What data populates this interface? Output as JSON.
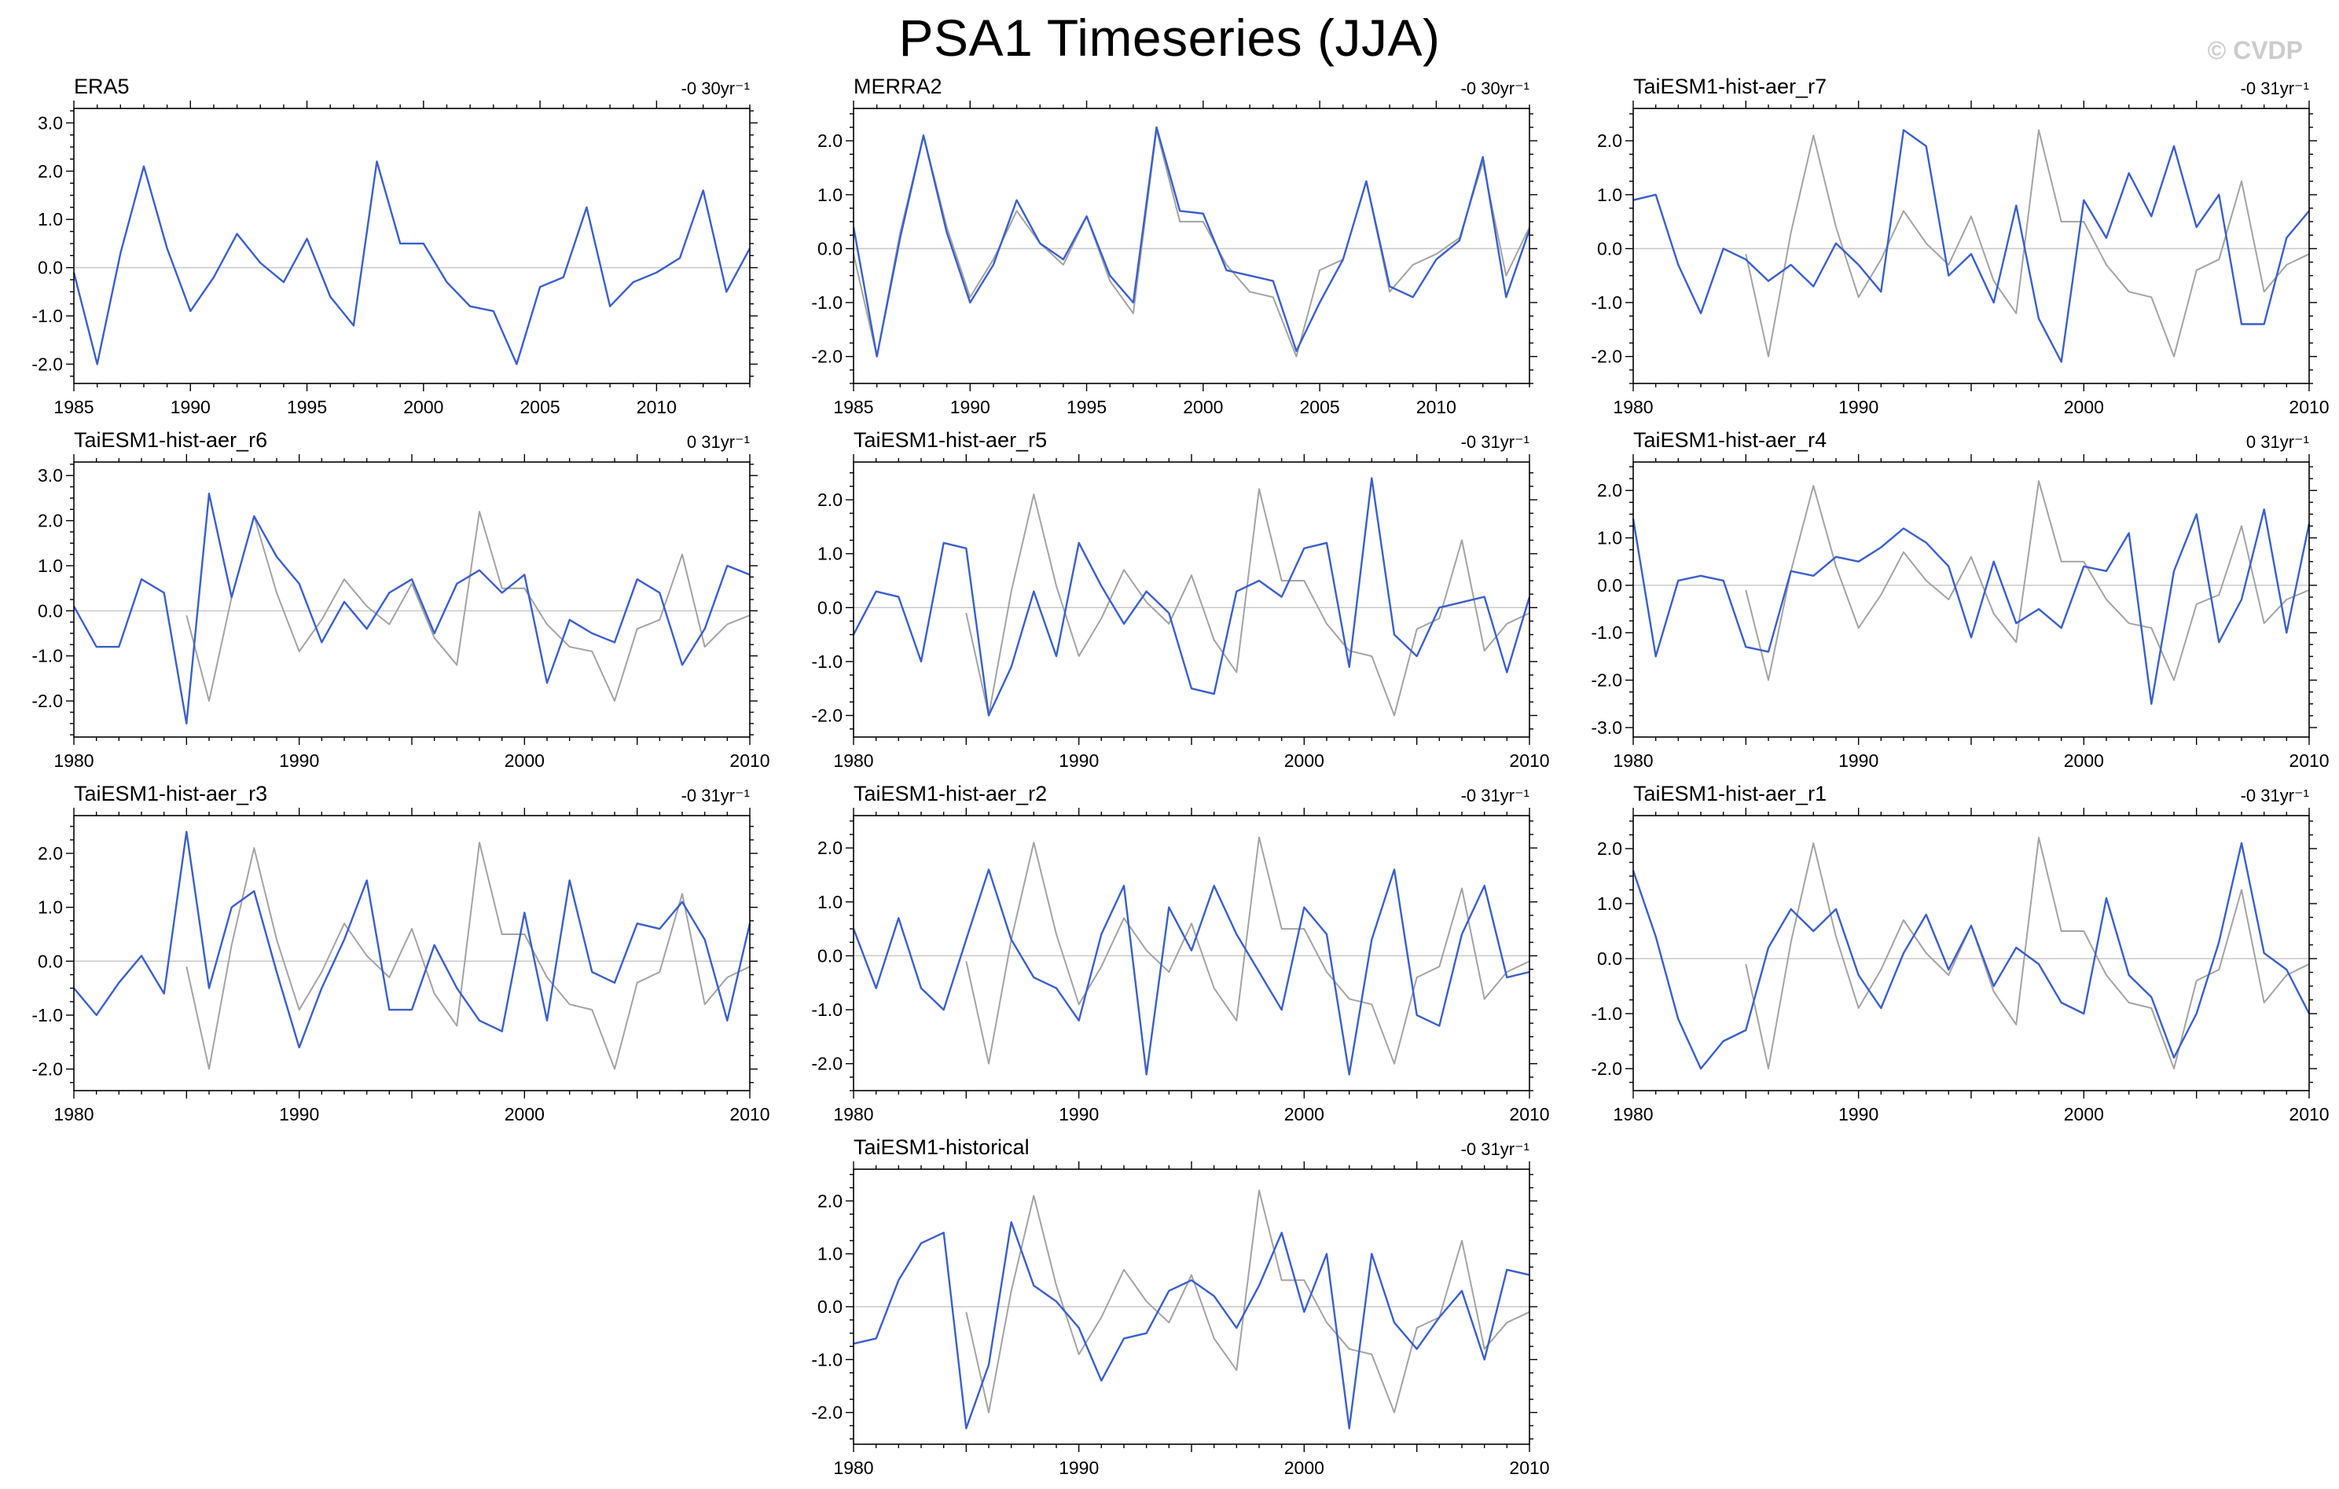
{
  "title": "PSA1 Timeseries (JJA)",
  "watermark": "© CVDP",
  "colors": {
    "primary_line": "#3a5fcd",
    "reference_line": "#a3a3a3",
    "zero_line": "#c9c9c9",
    "axis": "#000000",
    "watermark": "#cccccc"
  },
  "chart_data": {
    "type": "line",
    "title": "PSA1 Timeseries (JJA)",
    "xlabel": "",
    "ylabel": "",
    "legend": "none",
    "axes_style": {
      "grid": false,
      "zero_line": true,
      "x_major_step": 5,
      "x_minor_step": 1,
      "y_major_step": 1.0,
      "y_minor_step": 0.25,
      "ticks": "outward-all-sides"
    },
    "panels": [
      {
        "name": "ERA5",
        "trend_label": "-0 30yr⁻¹",
        "x_range": [
          1985,
          2014
        ],
        "xticks": [
          1985,
          1990,
          1995,
          2000,
          2005,
          2010
        ],
        "ylim": [
          -2.4,
          3.3
        ],
        "yticks": [
          -2.0,
          -1.0,
          0.0,
          1.0,
          2.0,
          3.0
        ],
        "series": [
          {
            "name": "ERA5",
            "color_role": "primary_line",
            "x_start": 1985,
            "values": [
              -0.1,
              -2.0,
              0.3,
              2.1,
              0.4,
              -0.9,
              -0.2,
              0.7,
              0.1,
              -0.3,
              0.6,
              -0.6,
              -1.2,
              2.2,
              0.5,
              0.5,
              -0.3,
              -0.8,
              -0.9,
              -2.0,
              -0.4,
              -0.2,
              1.25,
              -0.8,
              -0.3,
              -0.1,
              0.2,
              1.6,
              -0.5,
              0.4
            ]
          }
        ]
      },
      {
        "name": "MERRA2",
        "trend_label": "-0 30yr⁻¹",
        "x_range": [
          1985,
          2014
        ],
        "xticks": [
          1985,
          1990,
          1995,
          2000,
          2005,
          2010
        ],
        "ylim": [
          -2.5,
          2.6
        ],
        "yticks": [
          -2.0,
          -1.0,
          0.0,
          1.0,
          2.0
        ],
        "series": [
          {
            "name": "ERA5 (reference)",
            "color_role": "reference_line",
            "x_start": 1985,
            "values": [
              -0.1,
              -2.0,
              0.3,
              2.1,
              0.4,
              -0.9,
              -0.2,
              0.7,
              0.1,
              -0.3,
              0.6,
              -0.6,
              -1.2,
              2.2,
              0.5,
              0.5,
              -0.3,
              -0.8,
              -0.9,
              -2.0,
              -0.4,
              -0.2,
              1.25,
              -0.8,
              -0.3,
              -0.1,
              0.2,
              1.6,
              -0.5,
              0.4
            ]
          },
          {
            "name": "MERRA2",
            "color_role": "primary_line",
            "x_start": 1985,
            "values": [
              0.4,
              -2.0,
              0.2,
              2.1,
              0.3,
              -1.0,
              -0.3,
              0.9,
              0.1,
              -0.2,
              0.6,
              -0.5,
              -1.0,
              2.25,
              0.7,
              0.65,
              -0.4,
              -0.5,
              -0.6,
              -1.9,
              -1.0,
              -0.2,
              1.25,
              -0.7,
              -0.9,
              -0.2,
              0.15,
              1.7,
              -0.9,
              0.35
            ]
          }
        ]
      },
      {
        "name": "TaiESM1-hist-aer_r7",
        "trend_label": "-0 31yr⁻¹",
        "x_range": [
          1980,
          2010
        ],
        "xticks": [
          1980,
          1990,
          2000,
          2010
        ],
        "ylim": [
          -2.5,
          2.6
        ],
        "yticks": [
          -2.0,
          -1.0,
          0.0,
          1.0,
          2.0
        ],
        "series": [
          {
            "name": "ERA5 (reference)",
            "color_role": "reference_line",
            "x_start": 1985,
            "values": [
              -0.1,
              -2.0,
              0.3,
              2.1,
              0.4,
              -0.9,
              -0.2,
              0.7,
              0.1,
              -0.3,
              0.6,
              -0.6,
              -1.2,
              2.2,
              0.5,
              0.5,
              -0.3,
              -0.8,
              -0.9,
              -2.0,
              -0.4,
              -0.2,
              1.25,
              -0.8,
              -0.3,
              -0.1
            ]
          },
          {
            "name": "TaiESM1-hist-aer_r7",
            "color_role": "primary_line",
            "x_start": 1980,
            "values": [
              0.9,
              1.0,
              -0.3,
              -1.2,
              0.0,
              -0.2,
              -0.6,
              -0.3,
              -0.7,
              0.1,
              -0.3,
              -0.8,
              2.2,
              1.9,
              -0.5,
              -0.1,
              -1.0,
              0.8,
              -1.3,
              -2.1,
              0.9,
              0.2,
              1.4,
              0.6,
              1.9,
              0.4,
              1.0,
              -1.4,
              -1.4,
              0.2,
              0.7
            ]
          }
        ]
      },
      {
        "name": "TaiESM1-hist-aer_r6",
        "trend_label": "0 31yr⁻¹",
        "x_range": [
          1980,
          2010
        ],
        "xticks": [
          1980,
          1990,
          2000,
          2010
        ],
        "ylim": [
          -2.8,
          3.3
        ],
        "yticks": [
          -2.0,
          -1.0,
          0.0,
          1.0,
          2.0,
          3.0
        ],
        "series": [
          {
            "name": "ERA5 (reference)",
            "color_role": "reference_line",
            "x_start": 1985,
            "values": [
              -0.1,
              -2.0,
              0.3,
              2.1,
              0.4,
              -0.9,
              -0.2,
              0.7,
              0.1,
              -0.3,
              0.6,
              -0.6,
              -1.2,
              2.2,
              0.5,
              0.5,
              -0.3,
              -0.8,
              -0.9,
              -2.0,
              -0.4,
              -0.2,
              1.25,
              -0.8,
              -0.3,
              -0.1
            ]
          },
          {
            "name": "TaiESM1-hist-aer_r6",
            "color_role": "primary_line",
            "x_start": 1980,
            "values": [
              0.1,
              -0.8,
              -0.8,
              0.7,
              0.4,
              -2.5,
              2.6,
              0.3,
              2.1,
              1.2,
              0.6,
              -0.7,
              0.2,
              -0.4,
              0.4,
              0.7,
              -0.5,
              0.6,
              0.9,
              0.4,
              0.8,
              -1.6,
              -0.2,
              -0.5,
              -0.7,
              0.7,
              0.4,
              -1.2,
              -0.4,
              1.0,
              0.8
            ]
          }
        ]
      },
      {
        "name": "TaiESM1-hist-aer_r5",
        "trend_label": "-0 31yr⁻¹",
        "x_range": [
          1980,
          2010
        ],
        "xticks": [
          1980,
          1990,
          2000,
          2010
        ],
        "ylim": [
          -2.4,
          2.7
        ],
        "yticks": [
          -2.0,
          -1.0,
          0.0,
          1.0,
          2.0
        ],
        "series": [
          {
            "name": "ERA5 (reference)",
            "color_role": "reference_line",
            "x_start": 1985,
            "values": [
              -0.1,
              -2.0,
              0.3,
              2.1,
              0.4,
              -0.9,
              -0.2,
              0.7,
              0.1,
              -0.3,
              0.6,
              -0.6,
              -1.2,
              2.2,
              0.5,
              0.5,
              -0.3,
              -0.8,
              -0.9,
              -2.0,
              -0.4,
              -0.2,
              1.25,
              -0.8,
              -0.3,
              -0.1
            ]
          },
          {
            "name": "TaiESM1-hist-aer_r5",
            "color_role": "primary_line",
            "x_start": 1980,
            "values": [
              -0.5,
              0.3,
              0.2,
              -1.0,
              1.2,
              1.1,
              -2.0,
              -1.1,
              0.3,
              -0.9,
              1.2,
              0.4,
              -0.3,
              0.3,
              -0.1,
              -1.5,
              -1.6,
              0.3,
              0.5,
              0.2,
              1.1,
              1.2,
              -1.1,
              2.4,
              -0.5,
              -0.9,
              0.0,
              0.1,
              0.2,
              -1.2,
              0.2
            ]
          }
        ]
      },
      {
        "name": "TaiESM1-hist-aer_r4",
        "trend_label": "0 31yr⁻¹",
        "x_range": [
          1980,
          2010
        ],
        "xticks": [
          1980,
          1990,
          2000,
          2010
        ],
        "ylim": [
          -3.2,
          2.6
        ],
        "yticks": [
          -3.0,
          -2.0,
          -1.0,
          0.0,
          1.0,
          2.0
        ],
        "series": [
          {
            "name": "ERA5 (reference)",
            "color_role": "reference_line",
            "x_start": 1985,
            "values": [
              -0.1,
              -2.0,
              0.3,
              2.1,
              0.4,
              -0.9,
              -0.2,
              0.7,
              0.1,
              -0.3,
              0.6,
              -0.6,
              -1.2,
              2.2,
              0.5,
              0.5,
              -0.3,
              -0.8,
              -0.9,
              -2.0,
              -0.4,
              -0.2,
              1.25,
              -0.8,
              -0.3,
              -0.1
            ]
          },
          {
            "name": "TaiESM1-hist-aer_r4",
            "color_role": "primary_line",
            "x_start": 1980,
            "values": [
              1.4,
              -1.5,
              0.1,
              0.2,
              0.1,
              -1.3,
              -1.4,
              0.3,
              0.2,
              0.6,
              0.5,
              0.8,
              1.2,
              0.9,
              0.4,
              -1.1,
              0.5,
              -0.8,
              -0.5,
              -0.9,
              0.4,
              0.3,
              1.1,
              -2.5,
              0.3,
              1.5,
              -1.2,
              -0.3,
              1.6,
              -1.0,
              1.3
            ]
          }
        ]
      },
      {
        "name": "TaiESM1-hist-aer_r3",
        "trend_label": "-0 31yr⁻¹",
        "x_range": [
          1980,
          2010
        ],
        "xticks": [
          1980,
          1990,
          2000,
          2010
        ],
        "ylim": [
          -2.4,
          2.7
        ],
        "yticks": [
          -2.0,
          -1.0,
          0.0,
          1.0,
          2.0
        ],
        "series": [
          {
            "name": "ERA5 (reference)",
            "color_role": "reference_line",
            "x_start": 1985,
            "values": [
              -0.1,
              -2.0,
              0.3,
              2.1,
              0.4,
              -0.9,
              -0.2,
              0.7,
              0.1,
              -0.3,
              0.6,
              -0.6,
              -1.2,
              2.2,
              0.5,
              0.5,
              -0.3,
              -0.8,
              -0.9,
              -2.0,
              -0.4,
              -0.2,
              1.25,
              -0.8,
              -0.3,
              -0.1
            ]
          },
          {
            "name": "TaiESM1-hist-aer_r3",
            "color_role": "primary_line",
            "x_start": 1980,
            "values": [
              -0.5,
              -1.0,
              -0.4,
              0.1,
              -0.6,
              2.4,
              -0.5,
              1.0,
              1.3,
              -0.2,
              -1.6,
              -0.5,
              0.4,
              1.5,
              -0.9,
              -0.9,
              0.3,
              -0.5,
              -1.1,
              -1.3,
              0.9,
              -1.1,
              1.5,
              -0.2,
              -0.4,
              0.7,
              0.6,
              1.1,
              0.4,
              -1.1,
              0.7
            ]
          }
        ]
      },
      {
        "name": "TaiESM1-hist-aer_r2",
        "trend_label": "-0 31yr⁻¹",
        "x_range": [
          1980,
          2010
        ],
        "xticks": [
          1980,
          1990,
          2000,
          2010
        ],
        "ylim": [
          -2.5,
          2.6
        ],
        "yticks": [
          -2.0,
          -1.0,
          0.0,
          1.0,
          2.0
        ],
        "series": [
          {
            "name": "ERA5 (reference)",
            "color_role": "reference_line",
            "x_start": 1985,
            "values": [
              -0.1,
              -2.0,
              0.3,
              2.1,
              0.4,
              -0.9,
              -0.2,
              0.7,
              0.1,
              -0.3,
              0.6,
              -0.6,
              -1.2,
              2.2,
              0.5,
              0.5,
              -0.3,
              -0.8,
              -0.9,
              -2.0,
              -0.4,
              -0.2,
              1.25,
              -0.8,
              -0.3,
              -0.1
            ]
          },
          {
            "name": "TaiESM1-hist-aer_r2",
            "color_role": "primary_line",
            "x_start": 1980,
            "values": [
              0.5,
              -0.6,
              0.7,
              -0.6,
              -1.0,
              0.3,
              1.6,
              0.3,
              -0.4,
              -0.6,
              -1.2,
              0.4,
              1.3,
              -2.2,
              0.9,
              0.1,
              1.3,
              0.4,
              -0.3,
              -1.0,
              0.9,
              0.4,
              -2.2,
              0.3,
              1.6,
              -1.1,
              -1.3,
              0.4,
              1.3,
              -0.4,
              -0.3
            ]
          }
        ]
      },
      {
        "name": "TaiESM1-hist-aer_r1",
        "trend_label": "-0 31yr⁻¹",
        "x_range": [
          1980,
          2010
        ],
        "xticks": [
          1980,
          1990,
          2000,
          2010
        ],
        "ylim": [
          -2.4,
          2.6
        ],
        "yticks": [
          -2.0,
          -1.0,
          0.0,
          1.0,
          2.0
        ],
        "series": [
          {
            "name": "ERA5 (reference)",
            "color_role": "reference_line",
            "x_start": 1985,
            "values": [
              -0.1,
              -2.0,
              0.3,
              2.1,
              0.4,
              -0.9,
              -0.2,
              0.7,
              0.1,
              -0.3,
              0.6,
              -0.6,
              -1.2,
              2.2,
              0.5,
              0.5,
              -0.3,
              -0.8,
              -0.9,
              -2.0,
              -0.4,
              -0.2,
              1.25,
              -0.8,
              -0.3,
              -0.1
            ]
          },
          {
            "name": "TaiESM1-hist-aer_r1",
            "color_role": "primary_line",
            "x_start": 1980,
            "values": [
              1.6,
              0.4,
              -1.1,
              -2.0,
              -1.5,
              -1.3,
              0.2,
              0.9,
              0.5,
              0.9,
              -0.3,
              -0.9,
              0.1,
              0.8,
              -0.2,
              0.6,
              -0.5,
              0.2,
              -0.1,
              -0.8,
              -1.0,
              1.1,
              -0.3,
              -0.7,
              -1.8,
              -1.0,
              0.3,
              2.1,
              0.1,
              -0.2,
              -1.0
            ]
          }
        ]
      },
      {
        "name": "TaiESM1-historical",
        "trend_label": "-0 31yr⁻¹",
        "x_range": [
          1980,
          2010
        ],
        "xticks": [
          1980,
          1990,
          2000,
          2010
        ],
        "ylim": [
          -2.6,
          2.6
        ],
        "yticks": [
          -2.0,
          -1.0,
          0.0,
          1.0,
          2.0
        ],
        "series": [
          {
            "name": "ERA5 (reference)",
            "color_role": "reference_line",
            "x_start": 1985,
            "values": [
              -0.1,
              -2.0,
              0.3,
              2.1,
              0.4,
              -0.9,
              -0.2,
              0.7,
              0.1,
              -0.3,
              0.6,
              -0.6,
              -1.2,
              2.2,
              0.5,
              0.5,
              -0.3,
              -0.8,
              -0.9,
              -2.0,
              -0.4,
              -0.2,
              1.25,
              -0.8,
              -0.3,
              -0.1
            ]
          },
          {
            "name": "TaiESM1-historical",
            "color_role": "primary_line",
            "x_start": 1980,
            "values": [
              -0.7,
              -0.6,
              0.5,
              1.2,
              1.4,
              -2.3,
              -1.1,
              1.6,
              0.4,
              0.1,
              -0.4,
              -1.4,
              -0.6,
              -0.5,
              0.3,
              0.5,
              0.2,
              -0.4,
              0.4,
              1.4,
              -0.1,
              1.0,
              -2.3,
              1.0,
              -0.3,
              -0.8,
              -0.2,
              0.3,
              -1.0,
              0.7,
              0.6
            ]
          }
        ]
      }
    ]
  }
}
